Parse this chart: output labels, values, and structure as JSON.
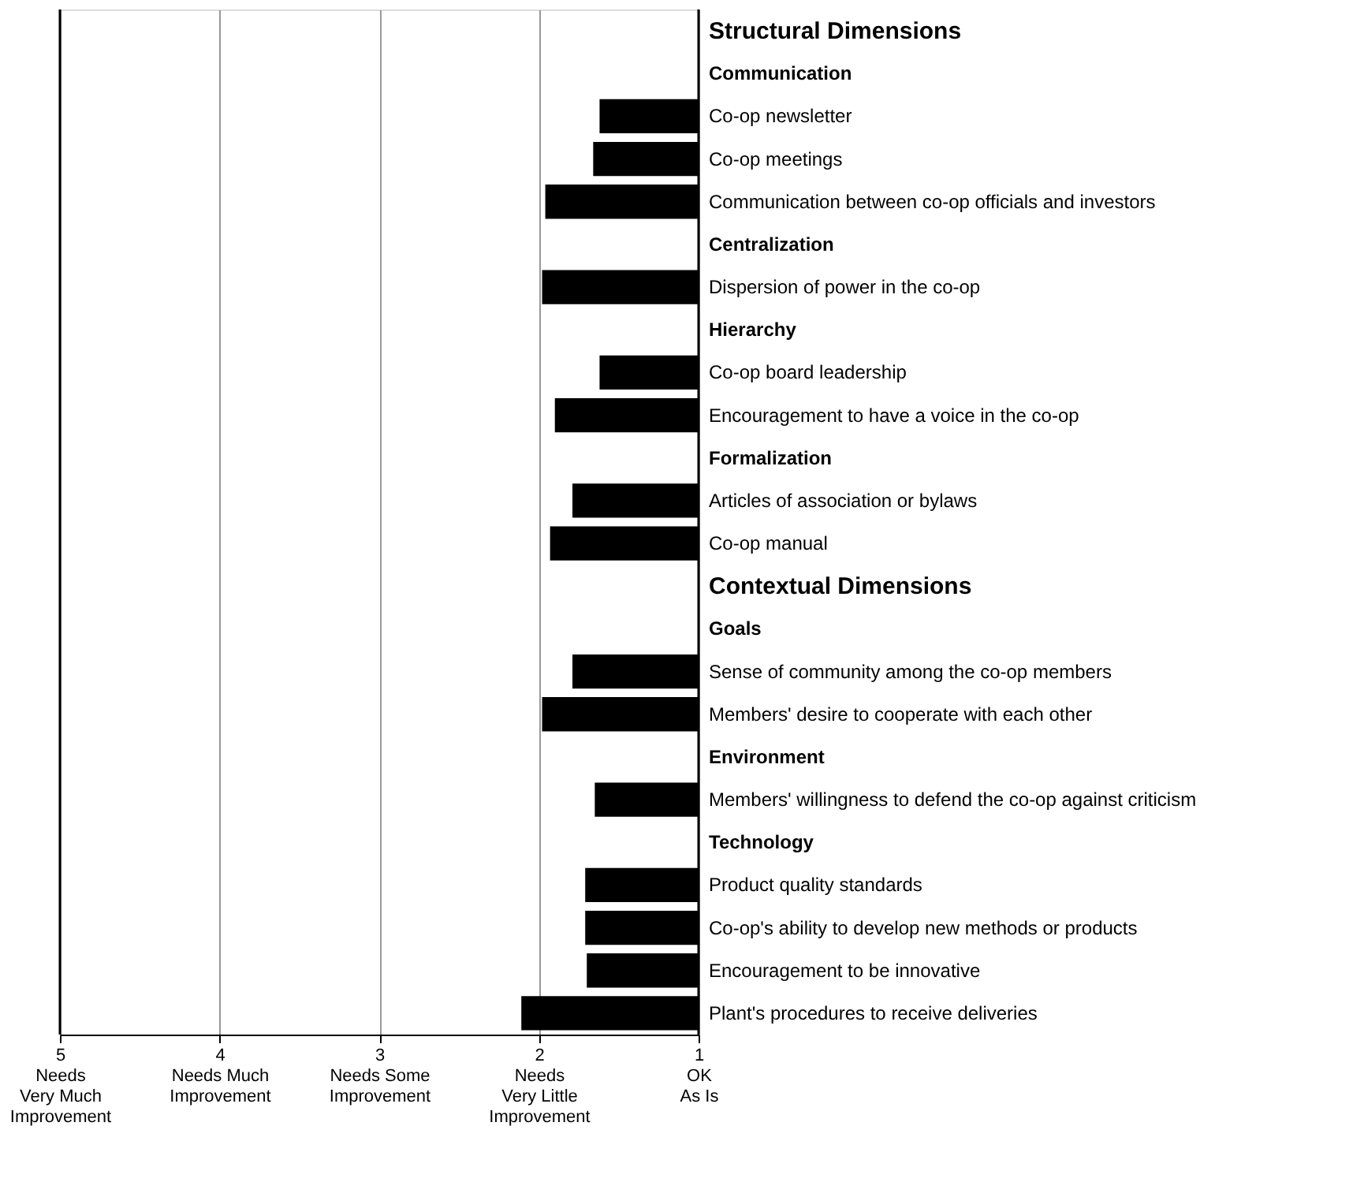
{
  "chart_data": {
    "type": "bar",
    "orientation": "horizontal",
    "categories": [
      "Structural Dimensions",
      "Communication",
      "Co-op newsletter",
      "Co-op meetings",
      "Communication between co-op officials and investors",
      "Centralization",
      "Dispersion of power in the co-op",
      "Hierarchy",
      "Co-op board leadership",
      "Encouragement to have a voice in the co-op",
      "Formalization",
      "Articles of association or bylaws",
      "Co-op manual",
      "Contextual Dimensions",
      "Goals",
      "Sense of community among the co-op members",
      "Members' desire to cooperate with each other",
      "Environment",
      "Members' willingness to defend the co-op against criticism",
      "Technology",
      "Product quality standards",
      "Co-op's ability to develop new methods or products",
      "Encouragement to be innovative",
      "Plant's procedures to receive deliveries"
    ],
    "values": [
      null,
      null,
      1.62,
      1.66,
      1.96,
      null,
      1.98,
      null,
      1.62,
      1.9,
      null,
      1.79,
      1.93,
      null,
      null,
      1.79,
      1.98,
      null,
      1.65,
      null,
      1.71,
      1.71,
      1.7,
      2.11
    ],
    "color": "#000000",
    "xlim": [
      5,
      1
    ],
    "xticks": [
      {
        "value": 5,
        "label": "5\nNeeds\nVery Much\nImprovement"
      },
      {
        "value": 4,
        "label": "4\nNeeds Much\nImprovement"
      },
      {
        "value": 3,
        "label": "3\nNeeds Some\nImprovement"
      },
      {
        "value": 2,
        "label": "2\nNeeds\nVery Little\nImprovement"
      },
      {
        "value": 1,
        "label": "1\nOK\nAs Is"
      }
    ],
    "grid": "x"
  }
}
